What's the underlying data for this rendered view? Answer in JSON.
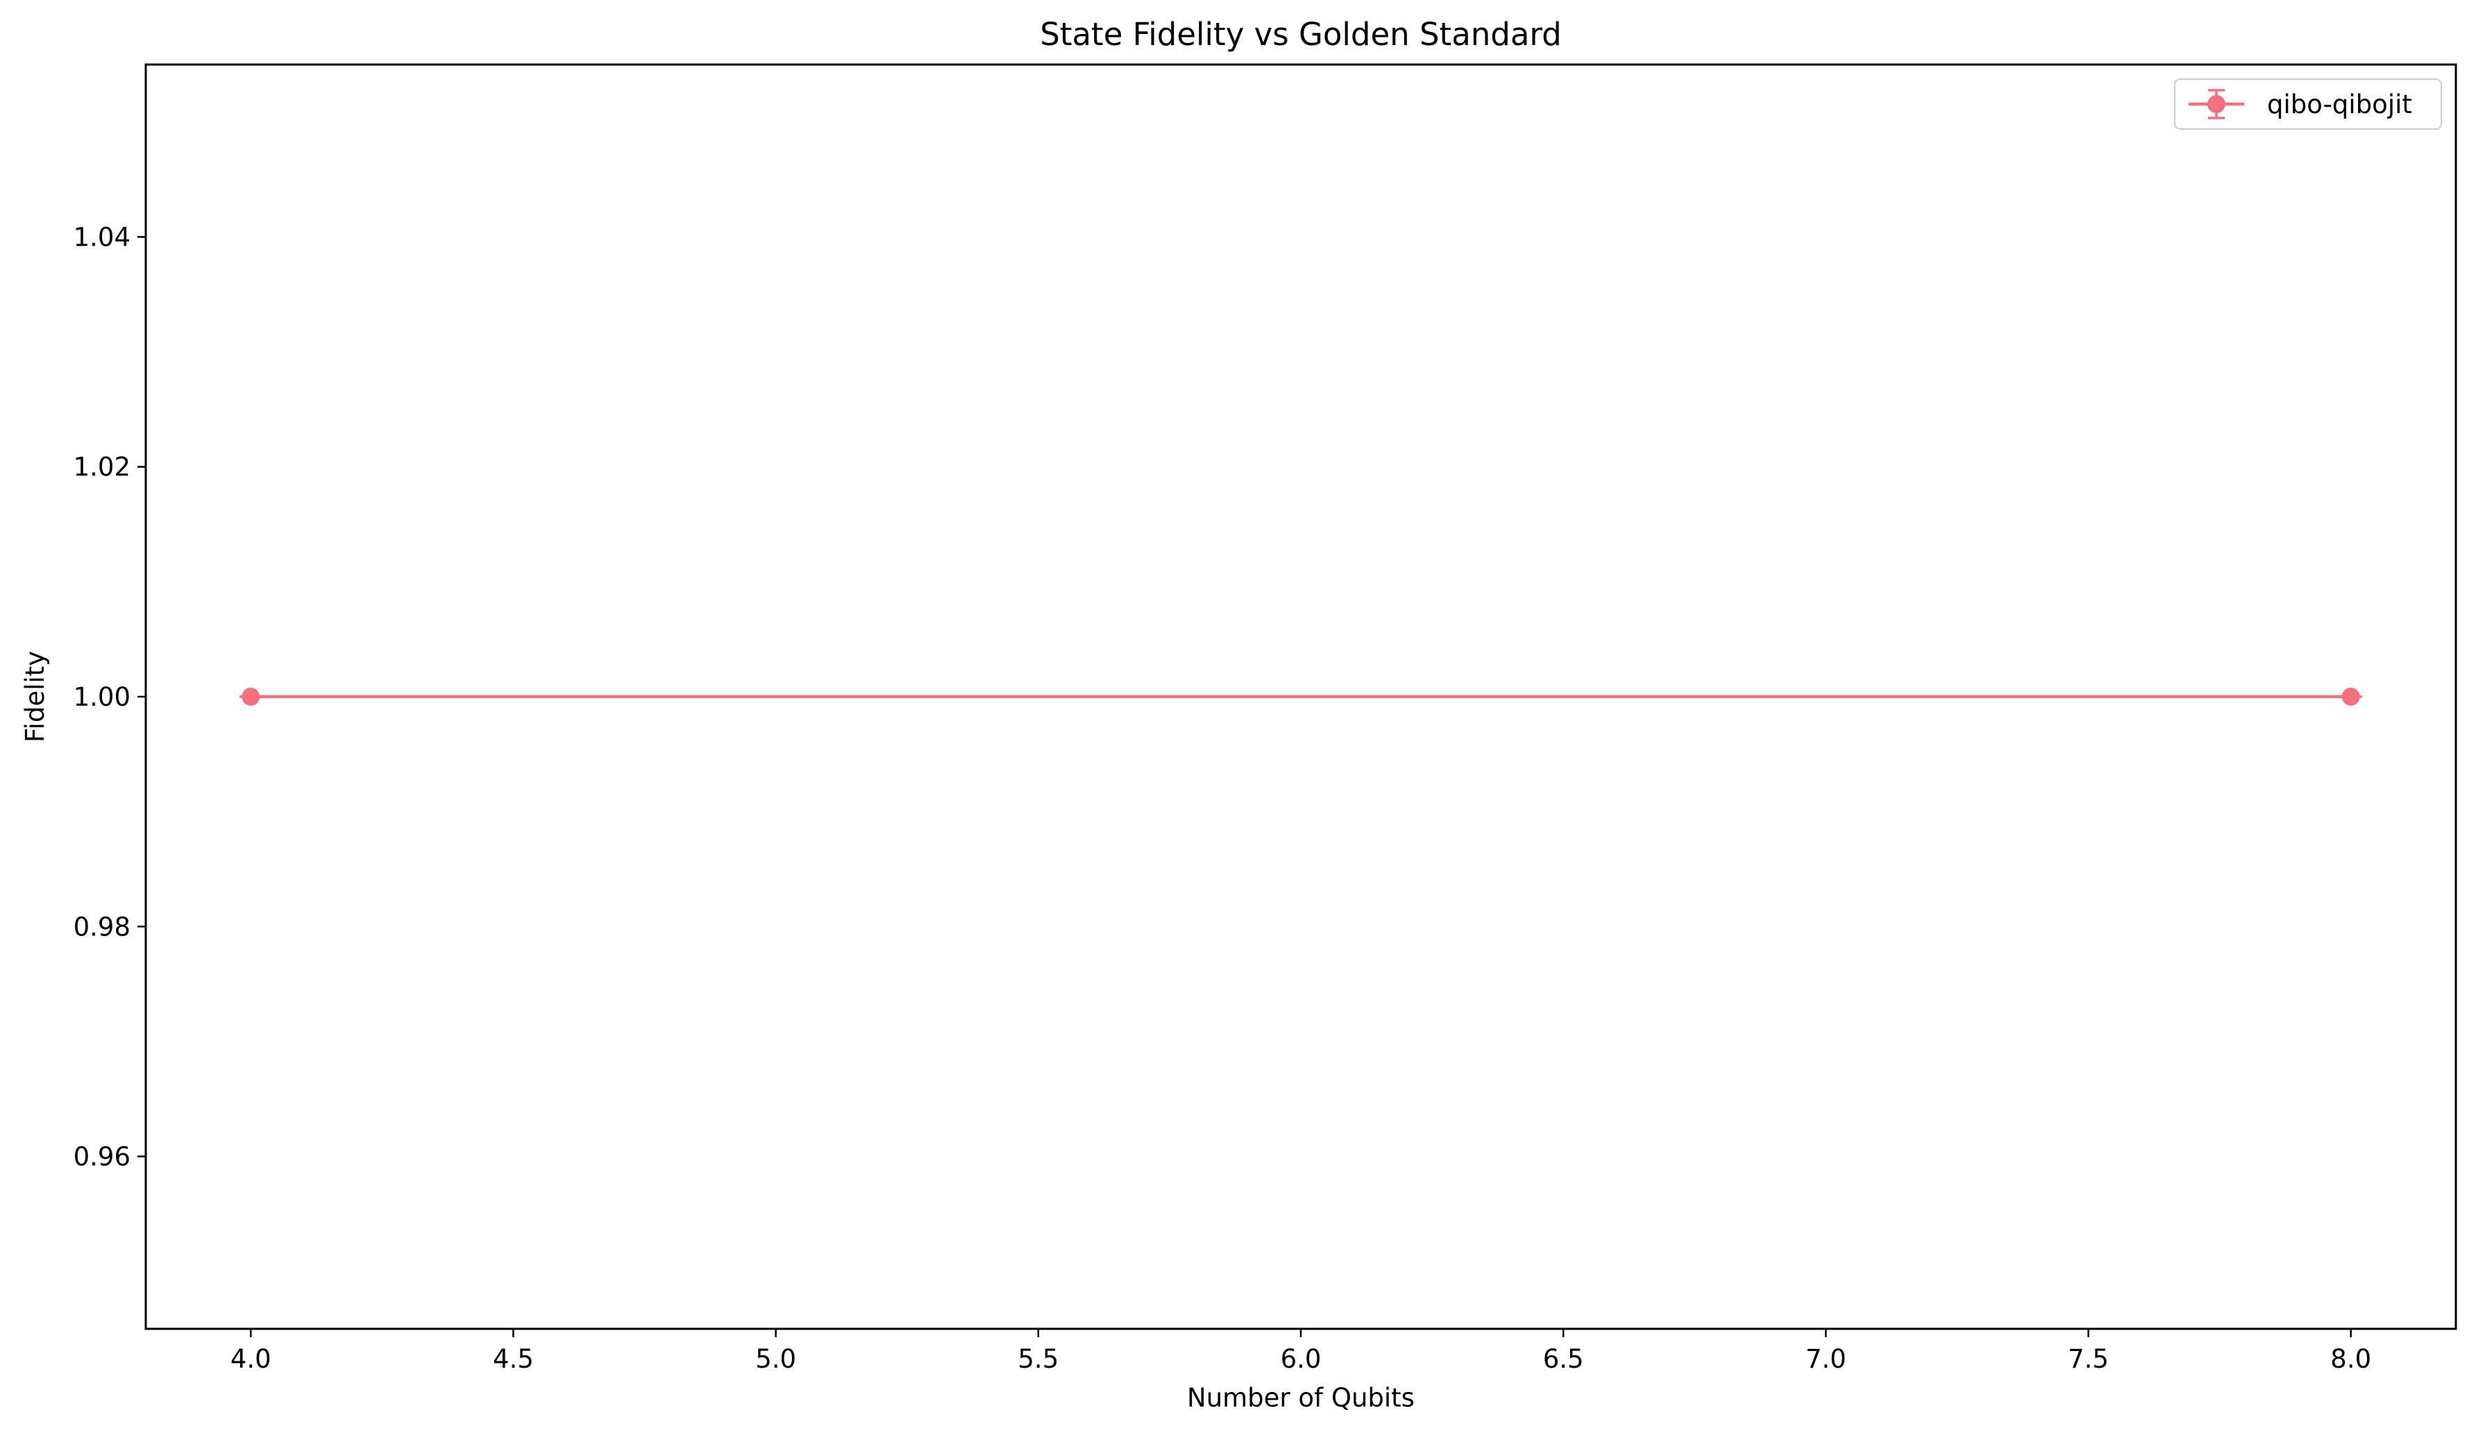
{
  "chart_data": {
    "type": "line",
    "title": "State Fidelity vs Golden Standard",
    "xlabel": "Number of Qubits",
    "ylabel": "Fidelity",
    "xlim": [
      3.8,
      8.2
    ],
    "ylim": [
      0.945,
      1.055
    ],
    "x_ticks": [
      4.0,
      4.5,
      5.0,
      5.5,
      6.0,
      6.5,
      7.0,
      7.5,
      8.0
    ],
    "x_tick_labels": [
      "4.0",
      "4.5",
      "5.0",
      "5.5",
      "6.0",
      "6.5",
      "7.0",
      "7.5",
      "8.0"
    ],
    "y_ticks": [
      0.96,
      0.98,
      1.0,
      1.02,
      1.04
    ],
    "y_tick_labels": [
      "0.96",
      "0.98",
      "1.00",
      "1.02",
      "1.04"
    ],
    "grid": false,
    "legend_position": "top-right",
    "series": [
      {
        "name": "qibo-qibojit",
        "x": [
          4,
          8
        ],
        "values": [
          1.0,
          1.0
        ],
        "errors": [
          0.0,
          0.0
        ],
        "color": "#f2707f",
        "marker": "circle"
      }
    ]
  }
}
